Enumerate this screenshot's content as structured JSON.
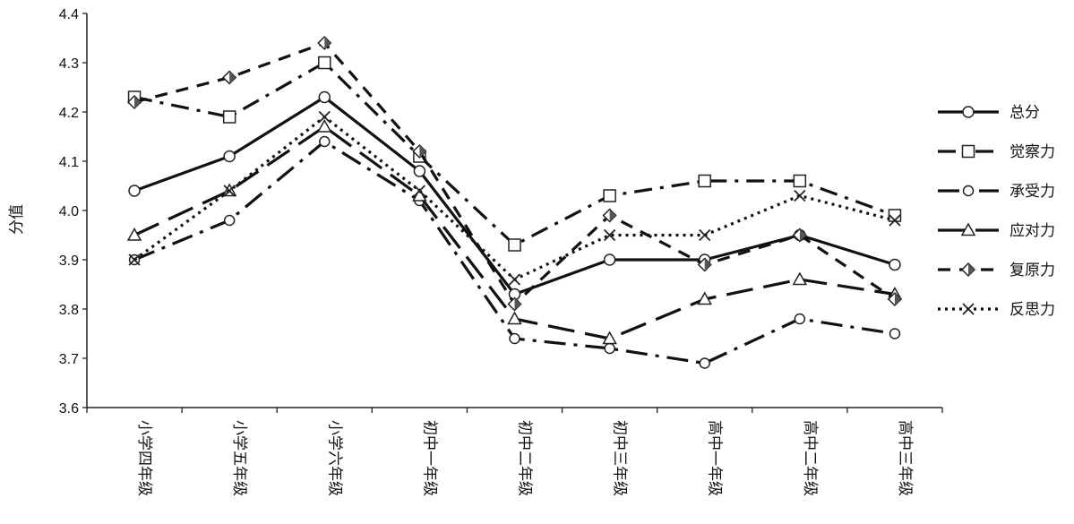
{
  "chart_data": {
    "type": "line",
    "ylabel": "分值",
    "xlabel": "",
    "ylim": [
      3.6,
      4.4
    ],
    "yticks": [
      "3.6",
      "3.7",
      "3.8",
      "3.9",
      "4.0",
      "4.1",
      "4.2",
      "4.3",
      "4.4"
    ],
    "categories": [
      "小学四年级",
      "小学五年级",
      "小学六年级",
      "初中一年级",
      "初中二年级",
      "初中三年级",
      "高中一年级",
      "高中二年级",
      "高中三年级"
    ],
    "grid": false,
    "legend_position": "right",
    "series": [
      {
        "name": "总分",
        "marker": "circle-open",
        "dash": "solid",
        "values": [
          4.04,
          4.11,
          4.23,
          4.08,
          3.83,
          3.9,
          3.9,
          3.95,
          3.89
        ]
      },
      {
        "name": "觉察力",
        "marker": "square-open",
        "dash": "dashdot",
        "values": [
          4.23,
          4.19,
          4.3,
          4.11,
          3.93,
          4.03,
          4.06,
          4.06,
          3.99
        ]
      },
      {
        "name": "承受力",
        "marker": "circle-open-small",
        "dash": "longdashdot",
        "values": [
          3.9,
          3.98,
          4.14,
          4.02,
          3.74,
          3.72,
          3.69,
          3.78,
          3.75
        ]
      },
      {
        "name": "应对力",
        "marker": "triangle-open",
        "dash": "longdash",
        "values": [
          3.95,
          4.04,
          4.17,
          4.03,
          3.78,
          3.74,
          3.82,
          3.86,
          3.83
        ]
      },
      {
        "name": "复原力",
        "marker": "diamond-open",
        "dash": "dash",
        "values": [
          4.22,
          4.27,
          4.34,
          4.12,
          3.81,
          3.99,
          3.89,
          3.95,
          3.82
        ]
      },
      {
        "name": "反思力",
        "marker": "x",
        "dash": "dot",
        "values": [
          3.9,
          4.04,
          4.19,
          4.04,
          3.86,
          3.95,
          3.95,
          4.03,
          3.98
        ]
      }
    ]
  }
}
